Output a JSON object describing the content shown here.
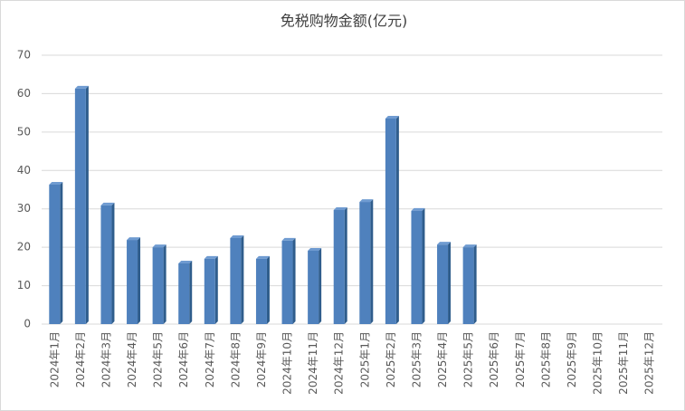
{
  "chart_data": {
    "type": "bar",
    "title": "免税购物金额(亿元)",
    "categories": [
      "2024年1月",
      "2024年2月",
      "2024年3月",
      "2024年4月",
      "2024年5月",
      "2024年6月",
      "2024年7月",
      "2024年8月",
      "2024年9月",
      "2024年10月",
      "2024年11月",
      "2024年12月",
      "2025年1月",
      "2025年2月",
      "2025年3月",
      "2025年4月",
      "2025年5月",
      "2025年6月",
      "2025年7月",
      "2025年8月",
      "2025年9月",
      "2025年10月",
      "2025年11月",
      "2025年12月"
    ],
    "values": [
      36.3,
      61.3,
      30.9,
      21.9,
      20.0,
      15.8,
      17.0,
      22.4,
      17.0,
      21.7,
      19.1,
      29.7,
      31.8,
      53.5,
      29.5,
      20.7,
      20.0,
      null,
      null,
      null,
      null,
      null,
      null,
      null
    ],
    "color": "#4f81bd",
    "ylim": [
      0,
      70
    ],
    "yticks": [
      0,
      10,
      20,
      30,
      40,
      50,
      60,
      70
    ],
    "grid": true
  }
}
